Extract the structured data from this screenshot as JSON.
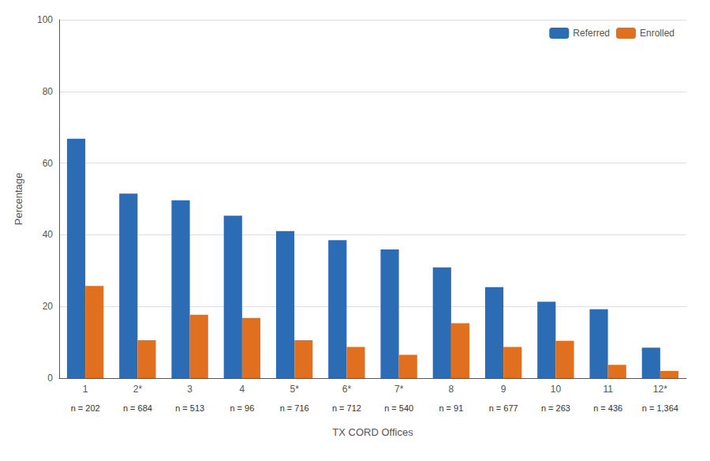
{
  "chart_data": {
    "type": "bar",
    "xlabel": "TX CORD Offices",
    "ylabel": "Percentage",
    "categories": [
      "1",
      "2*",
      "3",
      "4",
      "5*",
      "6*",
      "7*",
      "8",
      "9",
      "10",
      "11",
      "12*"
    ],
    "annotations": [
      "n = 202",
      "n = 684",
      "n = 513",
      "n = 96",
      "n = 716",
      "n = 712",
      "n = 540",
      "n = 91",
      "n = 677",
      "n = 263",
      "n = 436",
      "n = 1,364"
    ],
    "series": [
      {
        "name": "Referred",
        "color": "#2B6CB5",
        "values": [
          66.8,
          51.5,
          49.6,
          45.3,
          41.0,
          38.5,
          35.9,
          30.9,
          25.4,
          21.3,
          19.2,
          8.5
        ]
      },
      {
        "name": "Enrolled",
        "color": "#E07020",
        "values": [
          25.7,
          10.6,
          17.7,
          16.8,
          10.6,
          8.7,
          6.5,
          15.3,
          8.7,
          10.4,
          3.7,
          2.0
        ]
      }
    ],
    "ylim": [
      0,
      100
    ],
    "yticks": [
      0,
      20,
      40,
      60,
      80,
      100
    ],
    "grid": true,
    "legend": "upper right"
  }
}
